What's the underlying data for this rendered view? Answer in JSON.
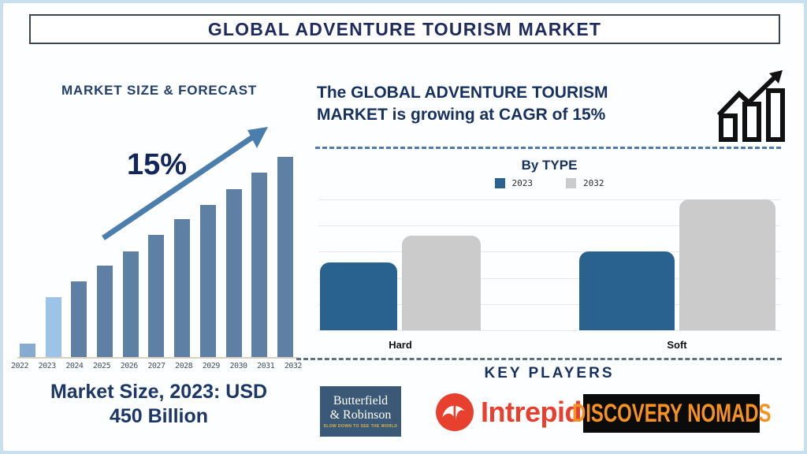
{
  "page": {
    "title": "GLOBAL ADVENTURE TOURISM MARKET"
  },
  "colors": {
    "navy_text": "#1f2a5e",
    "forecast_bar": "#5e80a5",
    "forecast_bar_2022": "#87abd0",
    "forecast_bar_2023": "#9dc4e8",
    "forecast_arrow": "#4b7dad",
    "bytype_2023": "#2a628f",
    "bytype_2032": "#cbcbcb",
    "intrepid_red": "#e8402f",
    "nomads_orange": "#f6921e",
    "butterfield_bg": "#3b5977",
    "butterfield_tagline": "#d8b44a"
  },
  "icons": {
    "growth_trend": "bar-chart-up-arrow-icon",
    "forecast_arrow": "diagonal-up-arrow-icon"
  },
  "left_panel": {
    "heading": "MARKET SIZE & FORECAST",
    "cagr_label": "15%",
    "footer_line1": "Market Size, 2023: USD",
    "footer_line2": "450 Billion"
  },
  "right_panel": {
    "growth_line1": "The GLOBAL ADVENTURE TOURISM",
    "growth_line2": "MARKET is growing at CAGR of 15%",
    "by_type": {
      "heading": "By TYPE"
    },
    "key_players": {
      "heading": "KEY PLAYERS",
      "players": [
        {
          "name": "Butterfield & Robinson",
          "line1": "Butterfield",
          "line2": "& Robinson",
          "tagline": "SLOW DOWN TO SEE THE WORLD"
        },
        {
          "name": "Intrepid",
          "label": "Intrepid"
        },
        {
          "name": "Discovery Nomads",
          "label": "DISCOVERY NOMADS"
        }
      ]
    }
  },
  "chart_data": [
    {
      "id": "market-size-forecast",
      "type": "bar",
      "title": "MARKET SIZE & FORECAST",
      "categories": [
        "2022",
        "2023",
        "2024",
        "2025",
        "2026",
        "2027",
        "2028",
        "2029",
        "2030",
        "2031",
        "2032"
      ],
      "values": [
        7,
        30,
        38,
        46,
        53,
        61,
        69,
        76,
        84,
        92,
        100
      ],
      "ylim": [
        0,
        100
      ],
      "unit": "relative bar height, max = 100 (no numeric axis shown)",
      "bar_color": "#5e80a5",
      "highlight_colors": {
        "2022": "#87abd0",
        "2023": "#9dc4e8"
      },
      "grid": false,
      "annotations": [
        "15% CAGR trend arrow",
        "Market Size, 2023: USD 450 Billion"
      ]
    },
    {
      "id": "by-type",
      "type": "bar",
      "title": "By TYPE",
      "categories": [
        "Hard",
        "Soft"
      ],
      "series": [
        {
          "name": "2023",
          "color": "#2a628f",
          "values": [
            52,
            60
          ]
        },
        {
          "name": "2032",
          "color": "#cbcbcb",
          "values": [
            72,
            100
          ]
        }
      ],
      "ylim": [
        0,
        100
      ],
      "unit": "relative bar height, max = 100 (no numeric axis shown)",
      "grid": true,
      "legend_position": "top"
    }
  ]
}
